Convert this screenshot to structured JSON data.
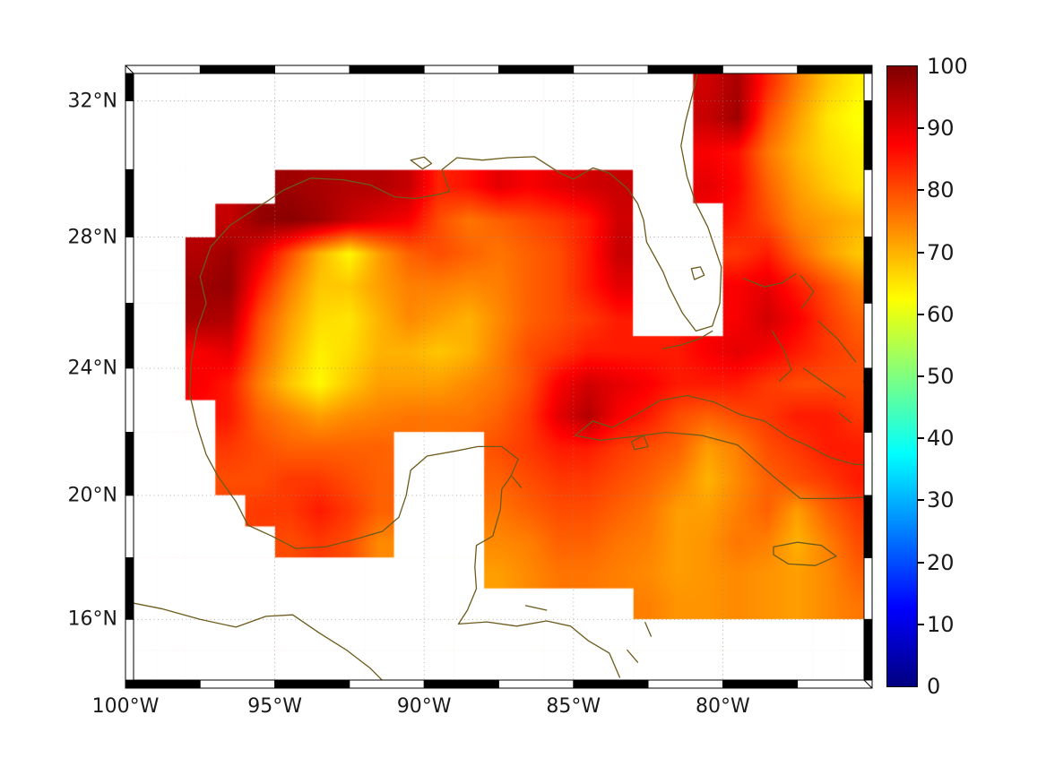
{
  "figure": {
    "background": "#ffffff",
    "text_color": "#1a1a1a"
  },
  "map": {
    "frame": {
      "black": "#000000",
      "white": "#ffffff",
      "outline": "#000000"
    },
    "grid": {
      "color": "#8a8a8a",
      "lons": [
        95,
        90,
        85,
        80
      ],
      "lats": [
        32,
        28,
        24,
        20,
        16
      ]
    },
    "coast_color": "#6b5a1c",
    "xticks": [
      {
        "label": "100°W",
        "lon": 100
      },
      {
        "label": "95°W",
        "lon": 95
      },
      {
        "label": "90°W",
        "lon": 90
      },
      {
        "label": "85°W",
        "lon": 85
      },
      {
        "label": "80°W",
        "lon": 80
      }
    ],
    "yticks": [
      {
        "label": "32°N",
        "lat": 32
      },
      {
        "label": "28°N",
        "lat": 28
      },
      {
        "label": "24°N",
        "lat": 24
      },
      {
        "label": "20°N",
        "lat": 20
      },
      {
        "label": "16°N",
        "lat": 16
      }
    ],
    "coastlines": [
      [
        [
          80.75,
          33.2
        ],
        [
          80.95,
          32.4
        ],
        [
          81.25,
          31.4
        ],
        [
          81.4,
          30.7
        ],
        [
          81.2,
          29.8
        ],
        [
          80.9,
          29.0
        ],
        [
          80.5,
          28.3
        ],
        [
          80.05,
          27.1
        ],
        [
          80.1,
          26.0
        ],
        [
          80.35,
          25.3
        ],
        [
          80.9,
          25.15
        ],
        [
          81.35,
          25.7
        ],
        [
          81.8,
          26.5
        ],
        [
          82.0,
          26.95
        ],
        [
          82.55,
          27.85
        ],
        [
          82.65,
          28.5
        ],
        [
          82.85,
          29.0
        ],
        [
          83.2,
          29.45
        ],
        [
          83.8,
          29.9
        ],
        [
          84.35,
          30.05
        ],
        [
          85.0,
          29.72
        ],
        [
          85.45,
          29.9
        ],
        [
          86.3,
          30.38
        ],
        [
          87.2,
          30.35
        ],
        [
          88.05,
          30.28
        ],
        [
          88.9,
          30.35
        ],
        [
          89.4,
          30.0
        ],
        [
          89.15,
          29.35
        ],
        [
          89.6,
          29.25
        ],
        [
          90.3,
          29.15
        ],
        [
          91.0,
          29.2
        ],
        [
          91.8,
          29.55
        ],
        [
          92.7,
          29.7
        ],
        [
          93.8,
          29.75
        ],
        [
          94.7,
          29.4
        ],
        [
          95.2,
          29.1
        ],
        [
          95.9,
          28.7
        ],
        [
          96.5,
          28.35
        ],
        [
          97.15,
          27.7
        ],
        [
          97.5,
          26.8
        ],
        [
          97.3,
          26.0
        ],
        [
          97.6,
          25.2
        ],
        [
          97.8,
          24.2
        ],
        [
          97.85,
          23.2
        ],
        [
          97.6,
          22.2
        ],
        [
          97.3,
          21.3
        ],
        [
          96.9,
          20.6
        ],
        [
          96.3,
          19.8
        ],
        [
          95.9,
          19.05
        ],
        [
          95.1,
          18.7
        ],
        [
          94.3,
          18.3
        ],
        [
          93.3,
          18.35
        ],
        [
          92.3,
          18.6
        ],
        [
          91.4,
          18.85
        ],
        [
          90.85,
          19.3
        ],
        [
          90.6,
          20.0
        ],
        [
          90.45,
          20.8
        ],
        [
          89.9,
          21.25
        ],
        [
          89.0,
          21.4
        ],
        [
          88.2,
          21.55
        ],
        [
          87.4,
          21.55
        ],
        [
          86.85,
          21.15
        ],
        [
          87.1,
          20.6
        ],
        [
          87.4,
          20.2
        ],
        [
          87.45,
          19.55
        ],
        [
          87.7,
          18.7
        ],
        [
          88.25,
          18.4
        ],
        [
          88.3,
          17.7
        ],
        [
          88.25,
          17.0
        ],
        [
          88.55,
          16.3
        ],
        [
          88.85,
          15.85
        ],
        [
          87.9,
          15.92
        ],
        [
          86.9,
          15.78
        ],
        [
          85.9,
          15.95
        ],
        [
          85.1,
          15.78
        ],
        [
          84.5,
          15.3
        ],
        [
          83.8,
          14.9
        ],
        [
          83.45,
          14.1
        ]
      ],
      [
        [
          100.1,
          16.6
        ],
        [
          98.8,
          16.35
        ],
        [
          97.5,
          16.0
        ],
        [
          96.3,
          15.75
        ],
        [
          95.3,
          16.1
        ],
        [
          94.4,
          16.15
        ],
        [
          93.5,
          15.55
        ],
        [
          92.6,
          15.0
        ],
        [
          91.8,
          14.4
        ],
        [
          91.4,
          14.0
        ]
      ],
      [
        [
          84.95,
          21.9
        ],
        [
          84.35,
          22.35
        ],
        [
          83.7,
          22.15
        ],
        [
          83.0,
          22.5
        ],
        [
          82.1,
          23.0
        ],
        [
          81.2,
          23.15
        ],
        [
          80.3,
          22.95
        ],
        [
          79.4,
          22.55
        ],
        [
          78.6,
          22.35
        ],
        [
          77.8,
          21.85
        ],
        [
          77.1,
          21.55
        ],
        [
          76.4,
          21.2
        ],
        [
          75.65,
          21.0
        ],
        [
          75.0,
          20.95
        ],
        [
          75.0,
          19.95
        ],
        [
          76.2,
          19.9
        ],
        [
          77.4,
          19.9
        ],
        [
          78.3,
          20.6
        ],
        [
          79.5,
          21.6
        ],
        [
          80.7,
          21.9
        ],
        [
          81.9,
          22.0
        ],
        [
          83.1,
          21.85
        ],
        [
          84.1,
          21.75
        ],
        [
          84.95,
          21.9
        ]
      ],
      [
        [
          83.05,
          21.7
        ],
        [
          82.65,
          21.9
        ],
        [
          82.5,
          21.55
        ],
        [
          82.95,
          21.45
        ],
        [
          83.05,
          21.7
        ]
      ],
      [
        [
          78.3,
          18.35
        ],
        [
          77.5,
          18.5
        ],
        [
          76.7,
          18.4
        ],
        [
          76.2,
          18.05
        ],
        [
          76.9,
          17.75
        ],
        [
          77.8,
          17.8
        ],
        [
          78.3,
          18.1
        ],
        [
          78.3,
          18.35
        ]
      ],
      [
        [
          79.3,
          26.75
        ],
        [
          78.6,
          26.5
        ],
        [
          78.0,
          26.62
        ],
        [
          77.55,
          26.9
        ]
      ],
      [
        [
          77.4,
          26.85
        ],
        [
          76.95,
          26.35
        ],
        [
          77.35,
          25.85
        ]
      ],
      [
        [
          78.35,
          25.15
        ],
        [
          77.95,
          24.55
        ],
        [
          77.7,
          23.95
        ],
        [
          78.1,
          23.6
        ]
      ],
      [
        [
          76.8,
          25.45
        ],
        [
          76.15,
          24.9
        ],
        [
          75.55,
          24.2
        ]
      ],
      [
        [
          77.3,
          24.0
        ],
        [
          76.6,
          23.55
        ],
        [
          75.9,
          23.1
        ]
      ],
      [
        [
          75.3,
          23.6
        ],
        [
          74.95,
          23.1
        ]
      ],
      [
        [
          76.1,
          22.6
        ],
        [
          75.7,
          22.3
        ]
      ],
      [
        [
          80.35,
          25.15
        ],
        [
          80.8,
          24.9
        ],
        [
          81.4,
          24.72
        ],
        [
          82.0,
          24.6
        ]
      ],
      [
        [
          87.05,
          20.6
        ],
        [
          86.75,
          20.25
        ]
      ],
      [
        [
          86.6,
          16.45
        ],
        [
          85.9,
          16.3
        ]
      ],
      [
        [
          90.45,
          30.28
        ],
        [
          90.0,
          30.37
        ],
        [
          89.75,
          30.18
        ],
        [
          90.05,
          30.02
        ],
        [
          90.45,
          30.28
        ]
      ],
      [
        [
          81.05,
          27.05
        ],
        [
          80.75,
          27.1
        ],
        [
          80.62,
          26.85
        ],
        [
          80.95,
          26.72
        ],
        [
          81.05,
          27.05
        ]
      ],
      [
        [
          83.2,
          15.0
        ],
        [
          82.85,
          14.6
        ]
      ],
      [
        [
          82.6,
          15.9
        ],
        [
          82.4,
          15.45
        ]
      ]
    ]
  },
  "chart_data": {
    "type": "heatmap",
    "title": "",
    "colormap": "jet",
    "vmin": 0,
    "vmax": 100,
    "colorbar_ticks": [
      0,
      10,
      20,
      30,
      40,
      50,
      60,
      70,
      80,
      90,
      100
    ],
    "lon_west": 100,
    "lon_east": 75,
    "lat_north": 33,
    "lat_south": 14,
    "cell_deg": 1,
    "values": [
      [
        null,
        null,
        null,
        null,
        null,
        null,
        null,
        null,
        null,
        null,
        null,
        null,
        null,
        null,
        null,
        null,
        null,
        null,
        null,
        92,
        96,
        84,
        75,
        68,
        64
      ],
      [
        null,
        null,
        null,
        null,
        null,
        null,
        null,
        null,
        null,
        null,
        null,
        null,
        null,
        null,
        null,
        null,
        null,
        null,
        null,
        93,
        97,
        80,
        72,
        65,
        62
      ],
      [
        null,
        null,
        null,
        null,
        null,
        null,
        null,
        null,
        null,
        null,
        null,
        null,
        null,
        null,
        null,
        null,
        null,
        null,
        null,
        88,
        86,
        76,
        70,
        66,
        64
      ],
      [
        null,
        null,
        null,
        null,
        null,
        97,
        96,
        95,
        95,
        93,
        84,
        86,
        90,
        88,
        90,
        92,
        93,
        null,
        null,
        90,
        87,
        78,
        72,
        68,
        65
      ],
      [
        null,
        null,
        null,
        93,
        98,
        99,
        97,
        93,
        90,
        88,
        80,
        76,
        78,
        80,
        82,
        85,
        92,
        null,
        null,
        null,
        85,
        80,
        74,
        72,
        70
      ],
      [
        null,
        null,
        95,
        97,
        90,
        80,
        70,
        63,
        72,
        78,
        80,
        78,
        76,
        78,
        80,
        85,
        93,
        null,
        null,
        null,
        82,
        85,
        78,
        72,
        68
      ],
      [
        null,
        null,
        97,
        98,
        85,
        75,
        68,
        68,
        72,
        75,
        75,
        74,
        75,
        78,
        80,
        85,
        90,
        null,
        null,
        null,
        88,
        90,
        85,
        80,
        75
      ],
      [
        null,
        null,
        96,
        95,
        80,
        72,
        66,
        65,
        70,
        74,
        72,
        70,
        74,
        78,
        80,
        82,
        85,
        null,
        null,
        null,
        88,
        92,
        88,
        82,
        78
      ],
      [
        null,
        null,
        88,
        90,
        78,
        70,
        64,
        66,
        70,
        70,
        68,
        70,
        75,
        80,
        82,
        85,
        85,
        85,
        85,
        88,
        90,
        88,
        85,
        82,
        80
      ],
      [
        null,
        null,
        88,
        85,
        75,
        68,
        63,
        68,
        72,
        72,
        72,
        74,
        76,
        80,
        88,
        92,
        90,
        88,
        85,
        85,
        85,
        82,
        80,
        80,
        80
      ],
      [
        null,
        null,
        null,
        85,
        78,
        75,
        72,
        74,
        75,
        76,
        76,
        76,
        78,
        82,
        90,
        95,
        88,
        85,
        80,
        78,
        80,
        82,
        85,
        85,
        82
      ],
      [
        null,
        null,
        null,
        82,
        80,
        78,
        78,
        78,
        78,
        null,
        null,
        null,
        80,
        82,
        85,
        85,
        82,
        80,
        78,
        72,
        75,
        80,
        82,
        85,
        85
      ],
      [
        null,
        null,
        null,
        80,
        80,
        82,
        82,
        80,
        78,
        null,
        null,
        null,
        78,
        80,
        82,
        82,
        80,
        78,
        75,
        70,
        74,
        78,
        80,
        82,
        85
      ],
      [
        null,
        null,
        null,
        null,
        82,
        82,
        85,
        82,
        78,
        null,
        null,
        null,
        76,
        78,
        80,
        80,
        78,
        76,
        72,
        72,
        75,
        78,
        72,
        78,
        82
      ],
      [
        null,
        null,
        null,
        null,
        null,
        80,
        82,
        80,
        74,
        null,
        null,
        null,
        74,
        75,
        78,
        78,
        76,
        75,
        72,
        73,
        76,
        75,
        70,
        75,
        80
      ],
      [
        null,
        null,
        null,
        null,
        null,
        null,
        null,
        null,
        null,
        null,
        null,
        null,
        72,
        74,
        76,
        76,
        75,
        74,
        72,
        73,
        74,
        73,
        72,
        74,
        78
      ],
      [
        null,
        null,
        null,
        null,
        null,
        null,
        null,
        null,
        null,
        null,
        null,
        null,
        null,
        null,
        null,
        null,
        null,
        75,
        73,
        73,
        74,
        73,
        72,
        74,
        76
      ],
      [
        null,
        null,
        null,
        null,
        null,
        null,
        null,
        null,
        null,
        null,
        null,
        null,
        null,
        null,
        null,
        null,
        null,
        null,
        null,
        null,
        null,
        null,
        null,
        null,
        null
      ],
      [
        null,
        null,
        null,
        null,
        null,
        null,
        null,
        null,
        null,
        null,
        null,
        null,
        null,
        null,
        null,
        null,
        null,
        null,
        null,
        null,
        null,
        null,
        null,
        null,
        null
      ]
    ]
  }
}
